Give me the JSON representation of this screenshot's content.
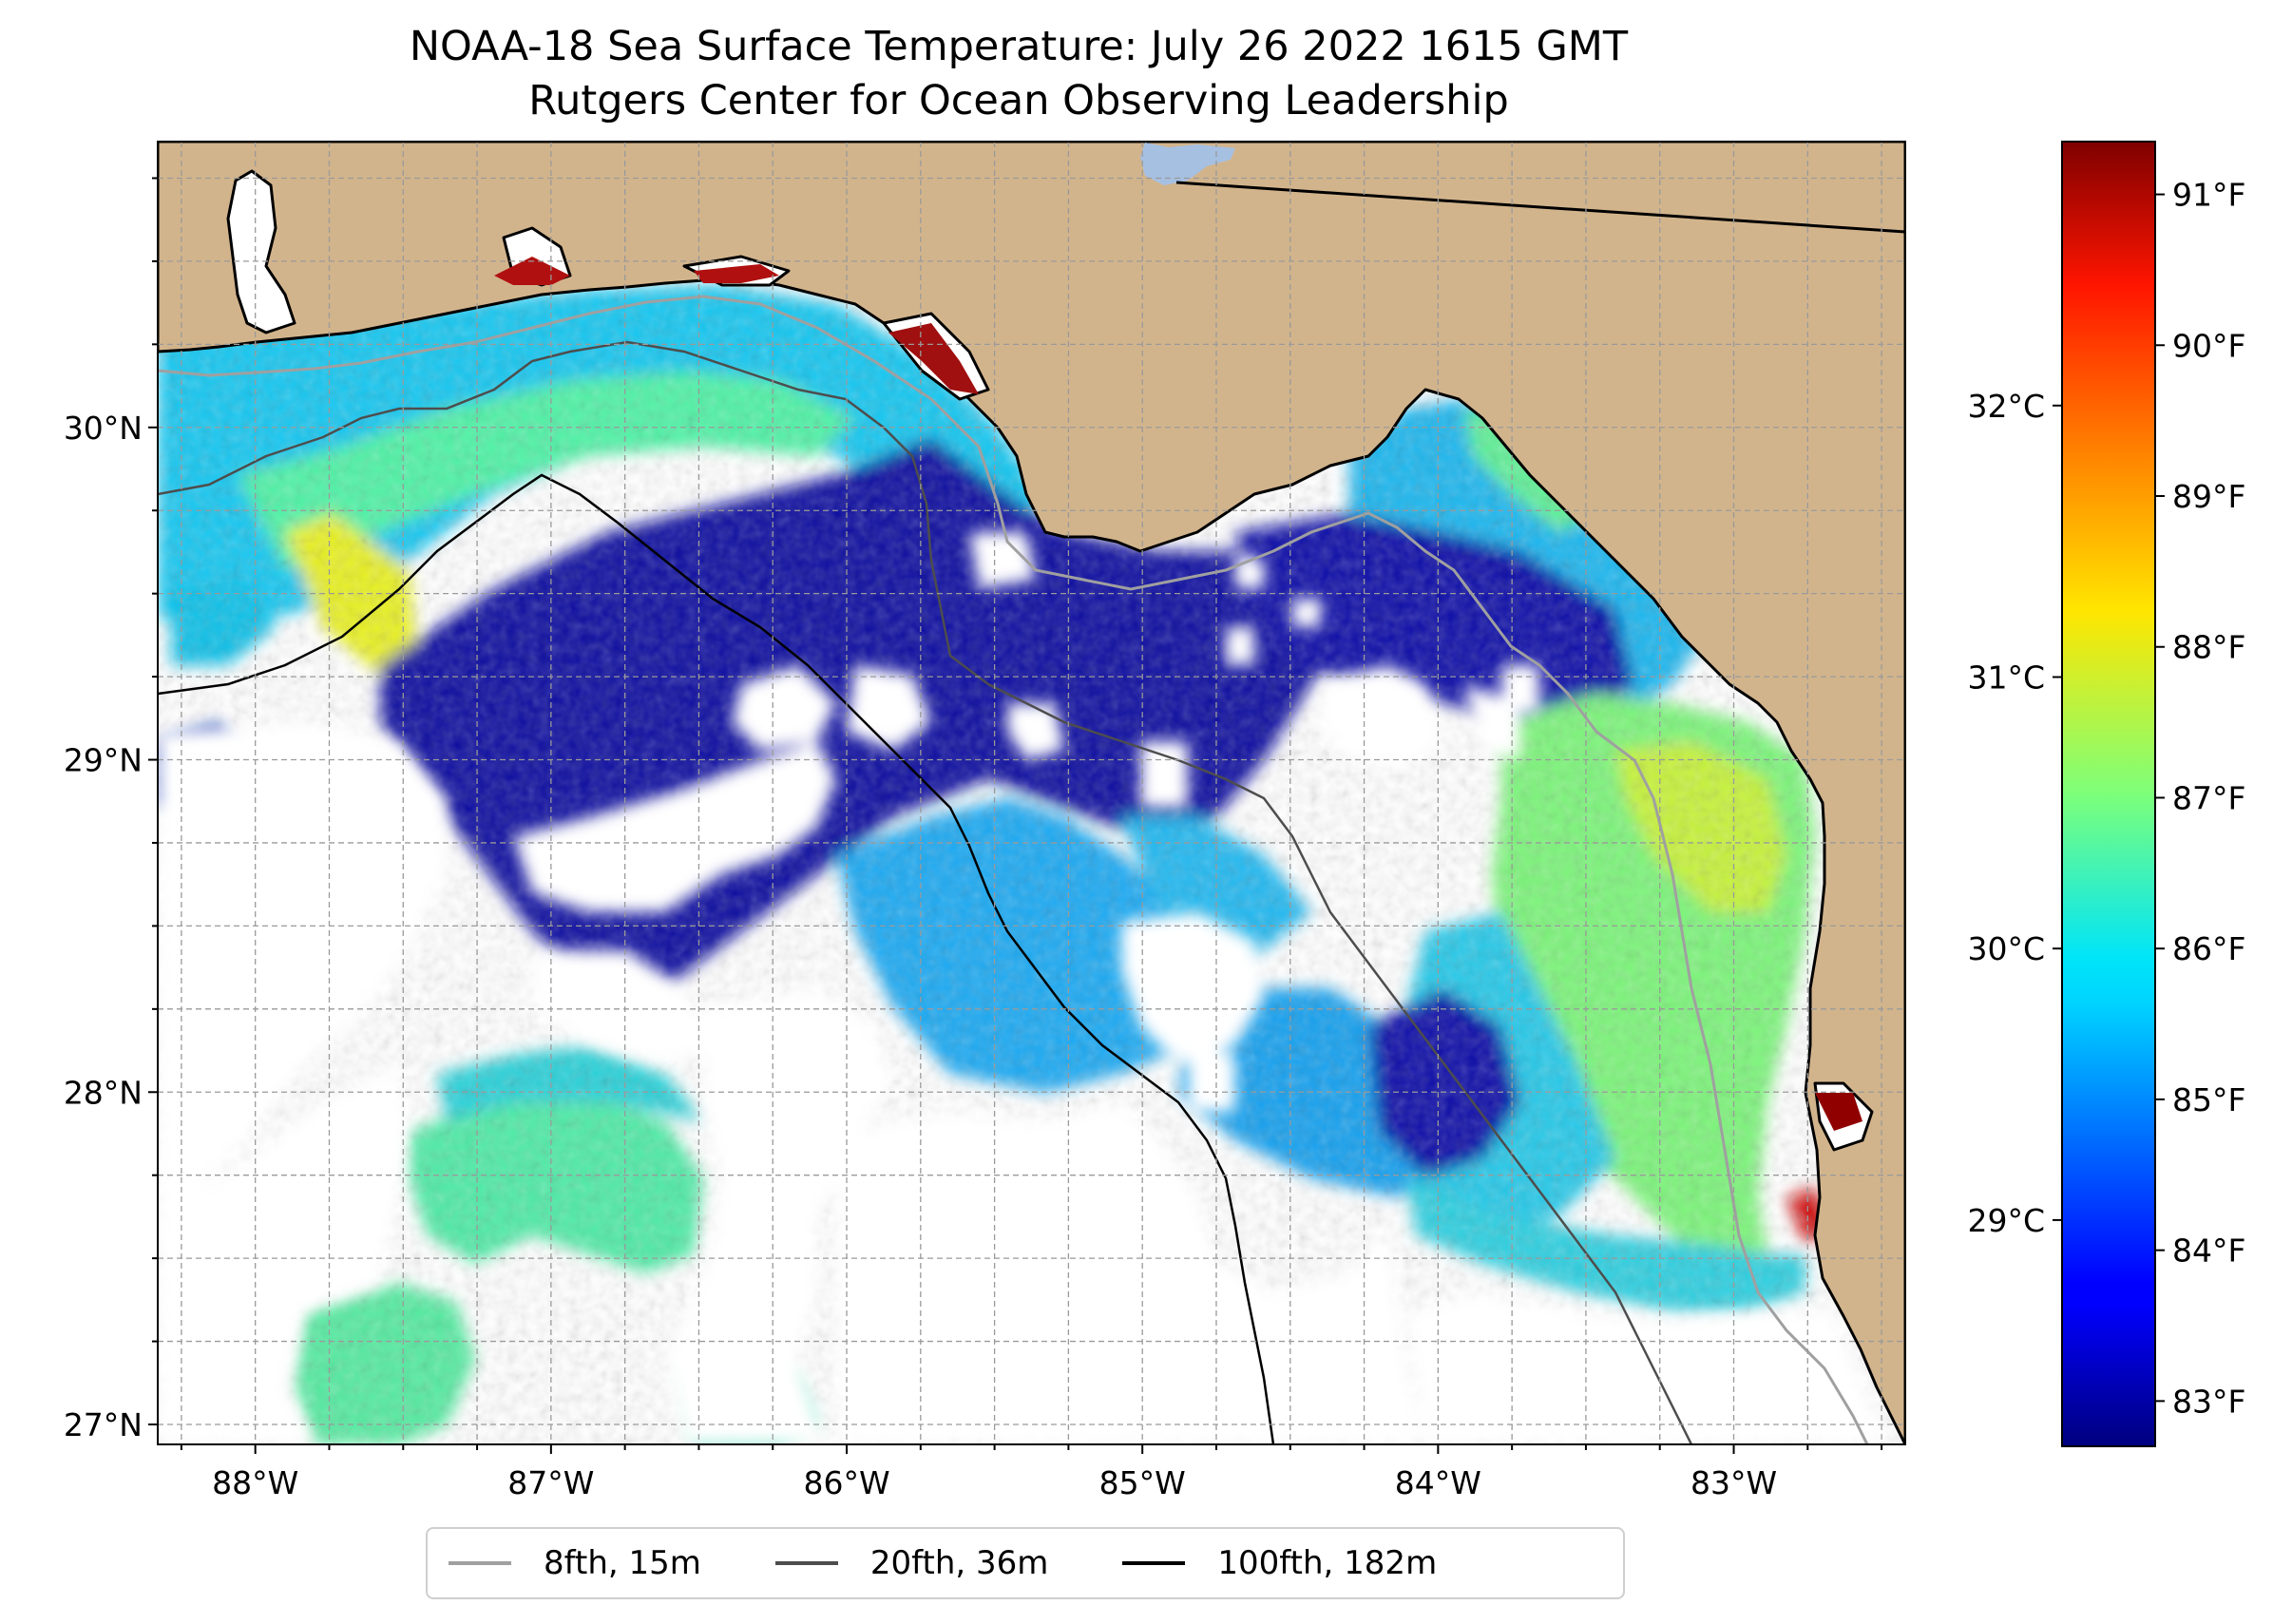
{
  "title": "NOAA-18 Sea Surface Temperature: July 26 2022 1615 GMT",
  "subtitle": "Rutgers Center for Ocean Observing Leadership",
  "colors": {
    "land": "#d2b48c",
    "lake": "#a6c0e2",
    "grid": "#9a9a9a",
    "iso8": "#a0a0a0",
    "iso20": "#4d4d4d",
    "iso100": "#000000"
  },
  "map": {
    "lon_range": [
      -88.33,
      -82.42
    ],
    "lat_range": [
      26.94,
      30.86
    ],
    "lon_ticks": [
      {
        "value": -88,
        "label": "88°W"
      },
      {
        "value": -87,
        "label": "87°W"
      },
      {
        "value": -86,
        "label": "86°W"
      },
      {
        "value": -85,
        "label": "85°W"
      },
      {
        "value": -84,
        "label": "84°W"
      },
      {
        "value": -83,
        "label": "83°W"
      }
    ],
    "lat_ticks": [
      {
        "value": 27,
        "label": "27°N"
      },
      {
        "value": 28,
        "label": "28°N"
      },
      {
        "value": 29,
        "label": "29°N"
      },
      {
        "value": 30,
        "label": "30°N"
      }
    ]
  },
  "colorbar": {
    "colormap": "jet",
    "f_range": [
      82.7,
      91.35
    ],
    "f_ticks": [
      {
        "value": 83,
        "label": "83°F"
      },
      {
        "value": 84,
        "label": "84°F"
      },
      {
        "value": 85,
        "label": "85°F"
      },
      {
        "value": 86,
        "label": "86°F"
      },
      {
        "value": 87,
        "label": "87°F"
      },
      {
        "value": 88,
        "label": "88°F"
      },
      {
        "value": 89,
        "label": "89°F"
      },
      {
        "value": 90,
        "label": "90°F"
      },
      {
        "value": 91,
        "label": "91°F"
      }
    ],
    "c_ticks": [
      {
        "value": 29,
        "label": "29°C"
      },
      {
        "value": 30,
        "label": "30°C"
      },
      {
        "value": 31,
        "label": "31°C"
      },
      {
        "value": 32,
        "label": "32°C"
      }
    ]
  },
  "legend": {
    "entries": [
      {
        "label": "8fth, 15m",
        "color": "#a0a0a0"
      },
      {
        "label": "20fth, 36m",
        "color": "#4d4d4d"
      },
      {
        "label": "100fth, 182m",
        "color": "#000000"
      }
    ]
  }
}
